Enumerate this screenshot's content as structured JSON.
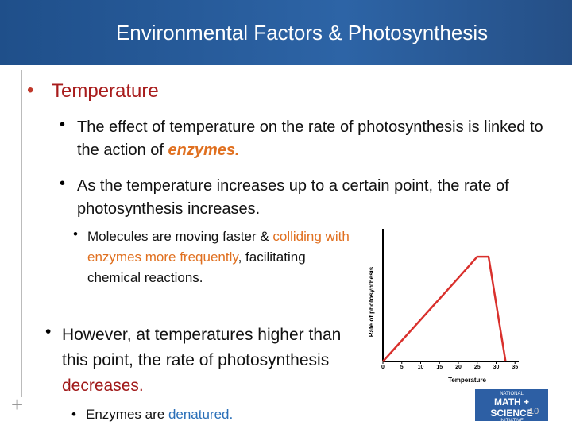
{
  "header": {
    "title": "Environmental Factors & Photosynthesis"
  },
  "bullets": [
    {
      "text": "Temperature",
      "items": [
        {
          "parts": [
            "The effect of temperature on the rate of photosynthesis is linked to the action of ",
            "enzymes."
          ]
        },
        {
          "parts": [
            "As the temperature increases up to a certain point, the rate of photosynthesis increases."
          ]
        },
        {
          "parts": [
            "Molecules are moving faster & ",
            "colliding with enzymes more frequently",
            ", facilitating chemical reactions."
          ]
        },
        {
          "parts": [
            "However, at temperatures higher than this point, the rate of photosynthesis ",
            "decreases."
          ]
        },
        {
          "parts": [
            "Enzymes are ",
            "denatured."
          ]
        }
      ]
    }
  ],
  "logo": {
    "line1": "NATIONAL",
    "line2": "MATH + SCIENCE",
    "line3": "INITIATIVE"
  },
  "slide_number": "10",
  "chart_data": {
    "type": "line",
    "x_label": "Temperature",
    "y_label": "Rate of photosynthesis",
    "x": [
      0,
      20,
      25,
      28,
      32.5
    ],
    "values": [
      0,
      63,
      79,
      79,
      0
    ],
    "color": "#d9302c",
    "xlim": [
      0,
      36
    ],
    "ylim": [
      0,
      100
    ],
    "xticks": [
      0,
      5,
      10,
      15,
      20,
      25,
      30,
      35
    ]
  }
}
